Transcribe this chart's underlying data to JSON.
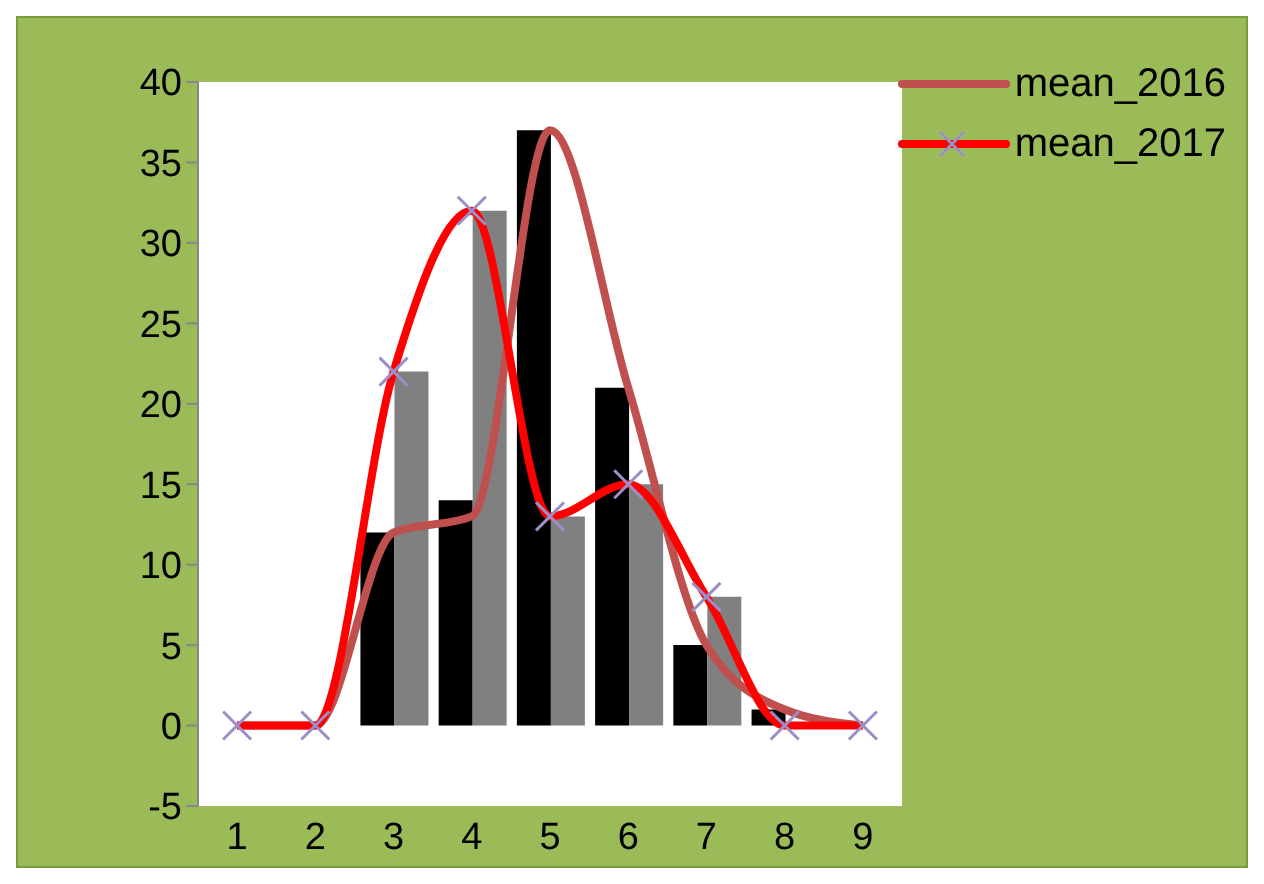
{
  "chart_data": {
    "type": "bar",
    "categories": [
      "1",
      "2",
      "3",
      "4",
      "5",
      "6",
      "7",
      "8",
      "9"
    ],
    "series": [
      {
        "color": "#000000",
        "values": [
          0,
          0,
          12,
          14,
          37,
          21,
          5,
          1,
          0
        ]
      },
      {
        "color": "#808080",
        "values": [
          0,
          0,
          22,
          32,
          13,
          15,
          8,
          0,
          0
        ]
      },
      {
        "type": "line",
        "name": "mean_2016",
        "color": "#c0504d",
        "marker": "none",
        "values": [
          0,
          0,
          12,
          13,
          37,
          21,
          5,
          1,
          0
        ]
      },
      {
        "type": "line",
        "name": "mean_2017",
        "color": "#ff0000",
        "marker": "cross",
        "values": [
          0,
          0,
          22,
          32,
          13,
          15,
          8,
          0,
          0
        ]
      }
    ],
    "ylim": [
      -5,
      40
    ],
    "yticks": [
      -5,
      0,
      5,
      10,
      15,
      20,
      25,
      30,
      35,
      40
    ],
    "legend": "top right"
  }
}
